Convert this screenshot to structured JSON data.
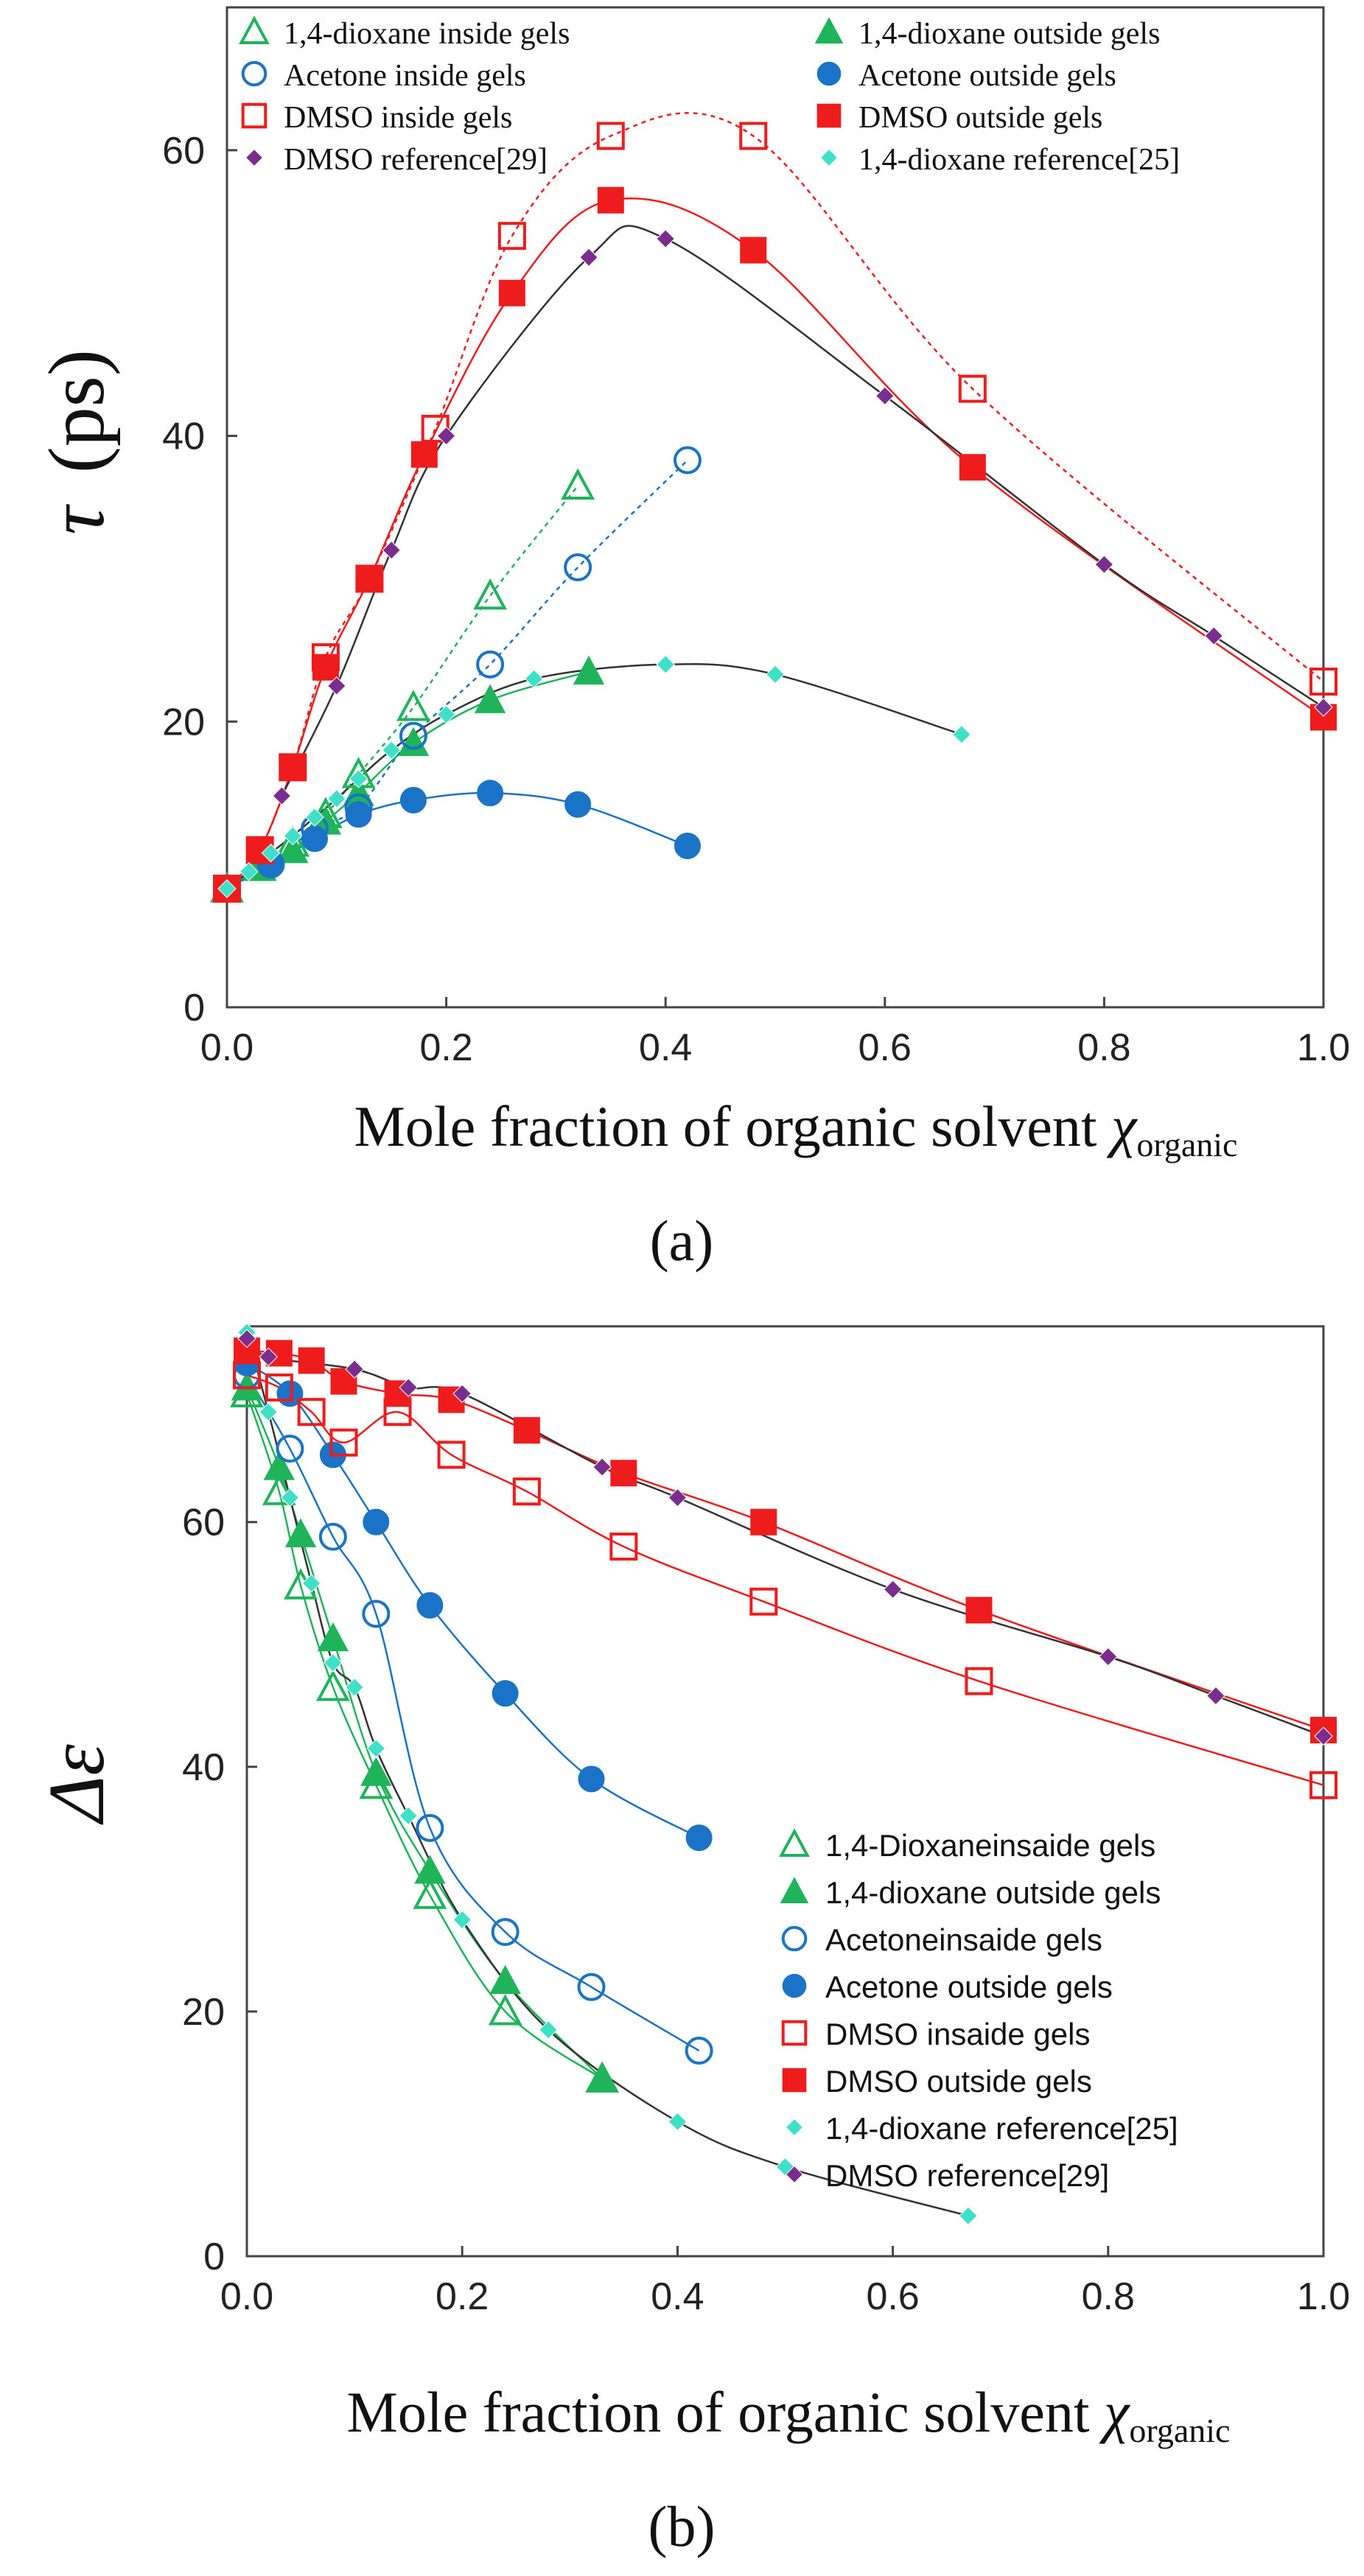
{
  "chart_data": [
    {
      "type": "scatter",
      "panel_label": "(a)",
      "ylabel_symbol": "τ",
      "ylabel_unit": "(ps)",
      "xlabel": "Mole fraction of organic solvent ",
      "xlabel_symbol": "χ",
      "xlabel_sub": "organic",
      "xlim": [
        0,
        1.0
      ],
      "ylim": [
        0,
        70
      ],
      "x_ticks": [
        "0.0",
        "0.2",
        "0.4",
        "0.6",
        "0.8",
        "1.0"
      ],
      "y_ticks": [
        "0",
        "20",
        "40",
        "60"
      ],
      "legend_placement": "top",
      "series": [
        {
          "name": "1,4-dioxane inside gels",
          "marker": "triangle-open",
          "color": "#1fb35a",
          "x": [
            0.0,
            0.03,
            0.06,
            0.09,
            0.12,
            0.17,
            0.24,
            0.32
          ],
          "y": [
            8.3,
            9.8,
            11.5,
            13.5,
            16.3,
            21.0,
            28.8,
            36.5
          ]
        },
        {
          "name": "1,4-dioxane outside gels",
          "marker": "triangle-filled",
          "color": "#1fb35a",
          "x": [
            0.0,
            0.03,
            0.06,
            0.09,
            0.12,
            0.17,
            0.24,
            0.33
          ],
          "y": [
            8.3,
            9.8,
            11.0,
            13.0,
            15.0,
            18.5,
            21.5,
            23.5
          ]
        },
        {
          "name": "Acetone inside gels",
          "marker": "circle-open",
          "color": "#1a73c6",
          "x": [
            0.0,
            0.04,
            0.08,
            0.12,
            0.17,
            0.24,
            0.32,
            0.42
          ],
          "y": [
            8.3,
            10.0,
            12.5,
            14.0,
            19.0,
            24.0,
            30.8,
            38.3
          ]
        },
        {
          "name": "Acetone outside gels",
          "marker": "circle-filled",
          "color": "#1a73c6",
          "x": [
            0.0,
            0.04,
            0.08,
            0.12,
            0.17,
            0.24,
            0.32,
            0.42
          ],
          "y": [
            8.3,
            10.0,
            11.8,
            13.5,
            14.5,
            15.0,
            14.2,
            11.3
          ]
        },
        {
          "name": "DMSO inside gels",
          "marker": "square-open",
          "color": "#ee1c1c",
          "x": [
            0.0,
            0.03,
            0.06,
            0.09,
            0.13,
            0.19,
            0.26,
            0.35,
            0.48,
            0.68,
            1.0
          ],
          "y": [
            8.3,
            11.0,
            16.8,
            24.5,
            30.0,
            40.5,
            54.0,
            61.0,
            61.0,
            43.3,
            22.8
          ]
        },
        {
          "name": "DMSO outside gels",
          "marker": "square-filled",
          "color": "#ee1c1c",
          "x": [
            0.0,
            0.03,
            0.06,
            0.09,
            0.13,
            0.18,
            0.26,
            0.35,
            0.48,
            0.68,
            1.0
          ],
          "y": [
            8.3,
            11.0,
            16.8,
            23.8,
            30.0,
            38.7,
            50.0,
            56.5,
            53.0,
            37.8,
            20.3
          ]
        },
        {
          "name": "DMSO reference[29]",
          "marker": "diamond",
          "color": "#7b2d8e",
          "x": [
            0.05,
            0.1,
            0.15,
            0.2,
            0.33,
            0.4,
            0.6,
            0.8,
            0.9,
            1.0
          ],
          "y": [
            14.8,
            22.5,
            32.0,
            40.0,
            52.5,
            53.8,
            42.8,
            31.0,
            26.0,
            21.0
          ]
        },
        {
          "name": "1,4-dioxane reference[25]",
          "marker": "diamond",
          "color": "#3fe0c8",
          "x": [
            0.0,
            0.02,
            0.04,
            0.06,
            0.08,
            0.1,
            0.12,
            0.15,
            0.2,
            0.28,
            0.4,
            0.5,
            0.67
          ],
          "y": [
            8.3,
            9.5,
            10.8,
            12.0,
            13.3,
            14.6,
            16.0,
            18.0,
            20.5,
            23.0,
            24.0,
            23.3,
            19.1
          ]
        }
      ]
    },
    {
      "type": "scatter",
      "panel_label": "(b)",
      "ylabel_symbol": "Δε",
      "xlabel": "Mole fraction of organic solvent ",
      "xlabel_symbol": "χ",
      "xlabel_sub": "organic",
      "xlim": [
        0,
        1.0
      ],
      "ylim": [
        0,
        76
      ],
      "x_ticks": [
        "0.0",
        "0.2",
        "0.4",
        "0.6",
        "0.8",
        "1.0"
      ],
      "y_ticks": [
        "0",
        "20",
        "40",
        "60"
      ],
      "legend_placement": "lower-right",
      "series": [
        {
          "name": "1,4-Dioxaneinsaide gels",
          "marker": "triangle-open",
          "color": "#1fb35a",
          "x": [
            0.0,
            0.03,
            0.05,
            0.08,
            0.12,
            0.17,
            0.24,
            0.33
          ],
          "y": [
            70.5,
            62.5,
            54.8,
            46.5,
            38.5,
            29.5,
            20.0,
            14.5
          ]
        },
        {
          "name": "1,4-dioxane outside gels",
          "marker": "triangle-filled",
          "color": "#1fb35a",
          "x": [
            0.0,
            0.03,
            0.05,
            0.08,
            0.12,
            0.17,
            0.24,
            0.33
          ],
          "y": [
            71.0,
            64.5,
            59.0,
            50.5,
            39.5,
            31.5,
            22.5,
            14.5
          ]
        },
        {
          "name": "Acetoneinsaide gels",
          "marker": "circle-open",
          "color": "#1a73c6",
          "x": [
            0.0,
            0.04,
            0.08,
            0.12,
            0.17,
            0.24,
            0.32,
            0.42
          ],
          "y": [
            72.0,
            66.0,
            58.8,
            52.5,
            35.0,
            26.5,
            22.0,
            16.8
          ]
        },
        {
          "name": "Acetone outside gels",
          "marker": "circle-filled",
          "color": "#1a73c6",
          "x": [
            0.0,
            0.04,
            0.08,
            0.12,
            0.17,
            0.24,
            0.32,
            0.42
          ],
          "y": [
            73.0,
            70.5,
            65.5,
            60.0,
            53.2,
            46.0,
            39.0,
            34.2
          ]
        },
        {
          "name": "DMSO insaide gels",
          "marker": "square-open",
          "color": "#ee1c1c",
          "x": [
            0.0,
            0.03,
            0.06,
            0.09,
            0.14,
            0.19,
            0.26,
            0.35,
            0.48,
            0.68,
            1.0
          ],
          "y": [
            72.0,
            71.0,
            69.0,
            66.5,
            69.0,
            65.5,
            62.5,
            58.0,
            53.5,
            47.0,
            38.5
          ]
        },
        {
          "name": "DMSO outside gels",
          "marker": "square-filled",
          "color": "#ee1c1c",
          "x": [
            0.0,
            0.03,
            0.06,
            0.09,
            0.14,
            0.19,
            0.26,
            0.35,
            0.48,
            0.68,
            1.0
          ],
          "y": [
            74.0,
            73.8,
            73.2,
            71.5,
            70.5,
            70.0,
            67.5,
            64.0,
            60.0,
            52.8,
            43.0
          ]
        },
        {
          "name": "1,4-dioxane reference[25]",
          "marker": "diamond",
          "color": "#3fe0c8",
          "x": [
            0.0,
            0.02,
            0.04,
            0.06,
            0.08,
            0.1,
            0.12,
            0.15,
            0.2,
            0.28,
            0.4,
            0.5,
            0.67
          ],
          "y": [
            75.5,
            69.0,
            62.0,
            55.0,
            48.5,
            46.5,
            41.5,
            36.0,
            27.5,
            18.5,
            11.0,
            7.3,
            3.3
          ]
        },
        {
          "name": "DMSO reference[29]",
          "marker": "diamond",
          "color": "#7b2d8e",
          "x": [
            0.0,
            0.02,
            0.1,
            0.15,
            0.2,
            0.33,
            0.4,
            0.6,
            0.8,
            0.9,
            1.0
          ],
          "y": [
            75.0,
            73.5,
            72.5,
            71.0,
            70.5,
            64.5,
            62.0,
            54.5,
            49.0,
            45.8,
            42.5
          ]
        }
      ]
    }
  ]
}
